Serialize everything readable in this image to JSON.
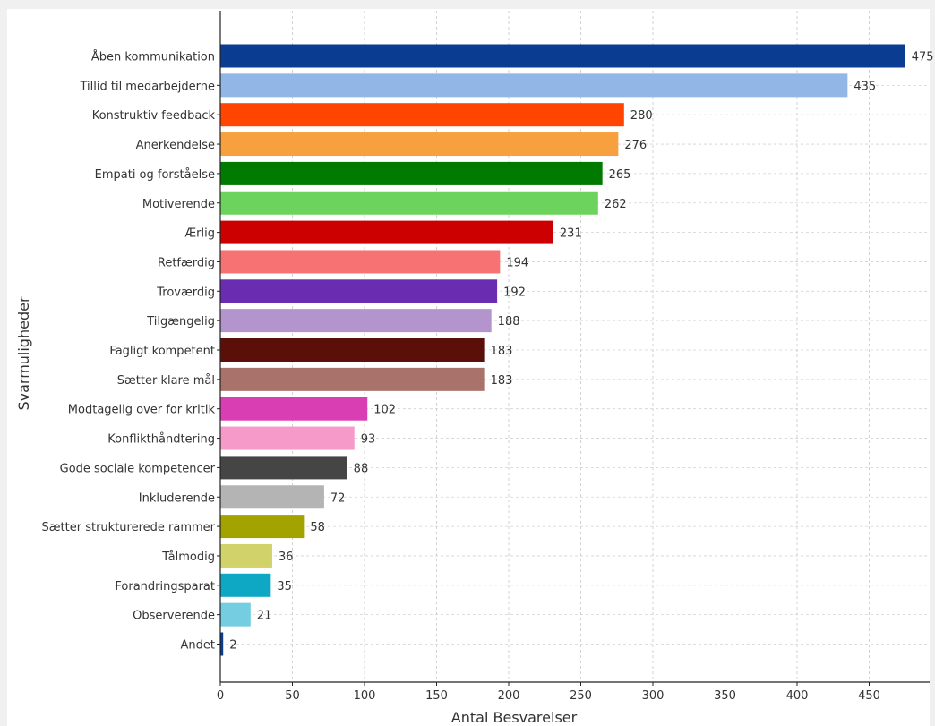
{
  "chart_data": {
    "type": "bar",
    "orientation": "horizontal",
    "title": "",
    "xlabel": "Antal Besvarelser",
    "ylabel": "Svarmuligheder",
    "xlim": [
      0,
      480
    ],
    "xticks": [
      0,
      50,
      100,
      150,
      200,
      250,
      300,
      350,
      400,
      450
    ],
    "grid": true,
    "categories": [
      "Åben kommunikation",
      "Tillid til medarbejderne",
      "Konstruktiv feedback",
      "Anerkendelse",
      "Empati og forståelse",
      "Motiverende",
      "Ærlig",
      "Retfærdig",
      "Troværdig",
      "Tilgængelig",
      "Fagligt kompetent",
      "Sætter klare mål",
      "Modtagelig over for kritik",
      "Konflikthåndtering",
      "Gode sociale kompetencer",
      "Inkluderende",
      "Sætter strukturerede rammer",
      "Tålmodig",
      "Forandringsparat",
      "Observerende",
      "Andet"
    ],
    "values": [
      475,
      435,
      280,
      276,
      265,
      262,
      231,
      194,
      192,
      188,
      183,
      183,
      102,
      93,
      88,
      72,
      58,
      36,
      35,
      21,
      2
    ],
    "colors": [
      "#0a3d91",
      "#92b6e6",
      "#ff4500",
      "#f7a040",
      "#007a00",
      "#6cd45c",
      "#cc0000",
      "#f77272",
      "#6a2db1",
      "#b394cc",
      "#5a0f08",
      "#a9726a",
      "#d93fb3",
      "#f59ac9",
      "#454545",
      "#b4b4b4",
      "#a3a300",
      "#d1d26a",
      "#0fa8c4",
      "#74cde0",
      "#0a3d91"
    ]
  }
}
